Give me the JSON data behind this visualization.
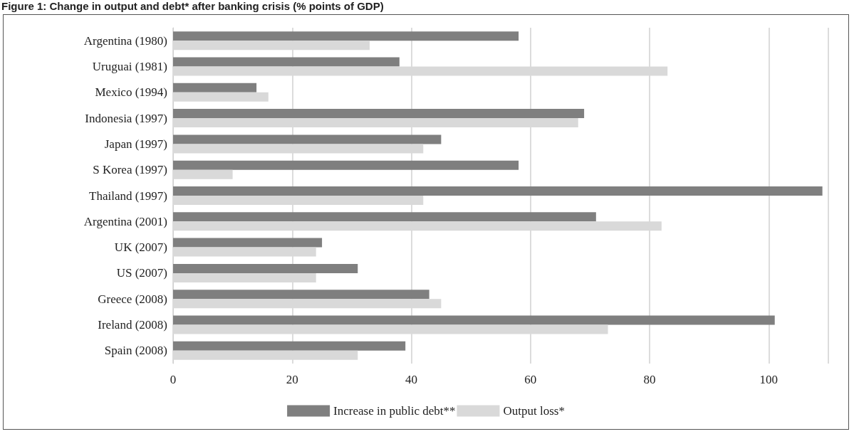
{
  "chart_data": {
    "type": "bar",
    "orientation": "horizontal",
    "title": "Figure 1: Change in output and debt* after banking crisis (% points of GDP)",
    "categories": [
      "Argentina (1980)",
      "Uruguai (1981)",
      "Mexico (1994)",
      "Indonesia (1997)",
      "Japan (1997)",
      "S Korea (1997)",
      "Thailand (1997)",
      "Argentina (2001)",
      "UK (2007)",
      "US (2007)",
      "Greece (2008)",
      "Ireland (2008)",
      "Spain (2008)"
    ],
    "series": [
      {
        "name": "Increase in public debt**",
        "color": "#7f7f7f",
        "values": [
          58,
          38,
          14,
          69,
          45,
          58,
          109,
          71,
          25,
          31,
          43,
          101,
          39
        ]
      },
      {
        "name": "Output loss*",
        "color": "#d9d9d9",
        "values": [
          33,
          83,
          16,
          68,
          42,
          10,
          42,
          82,
          24,
          24,
          45,
          73,
          31
        ]
      }
    ],
    "xlim": [
      0,
      110
    ],
    "xticks": [
      0,
      20,
      40,
      60,
      80,
      100
    ],
    "grid": "x",
    "legend": "bottom"
  }
}
